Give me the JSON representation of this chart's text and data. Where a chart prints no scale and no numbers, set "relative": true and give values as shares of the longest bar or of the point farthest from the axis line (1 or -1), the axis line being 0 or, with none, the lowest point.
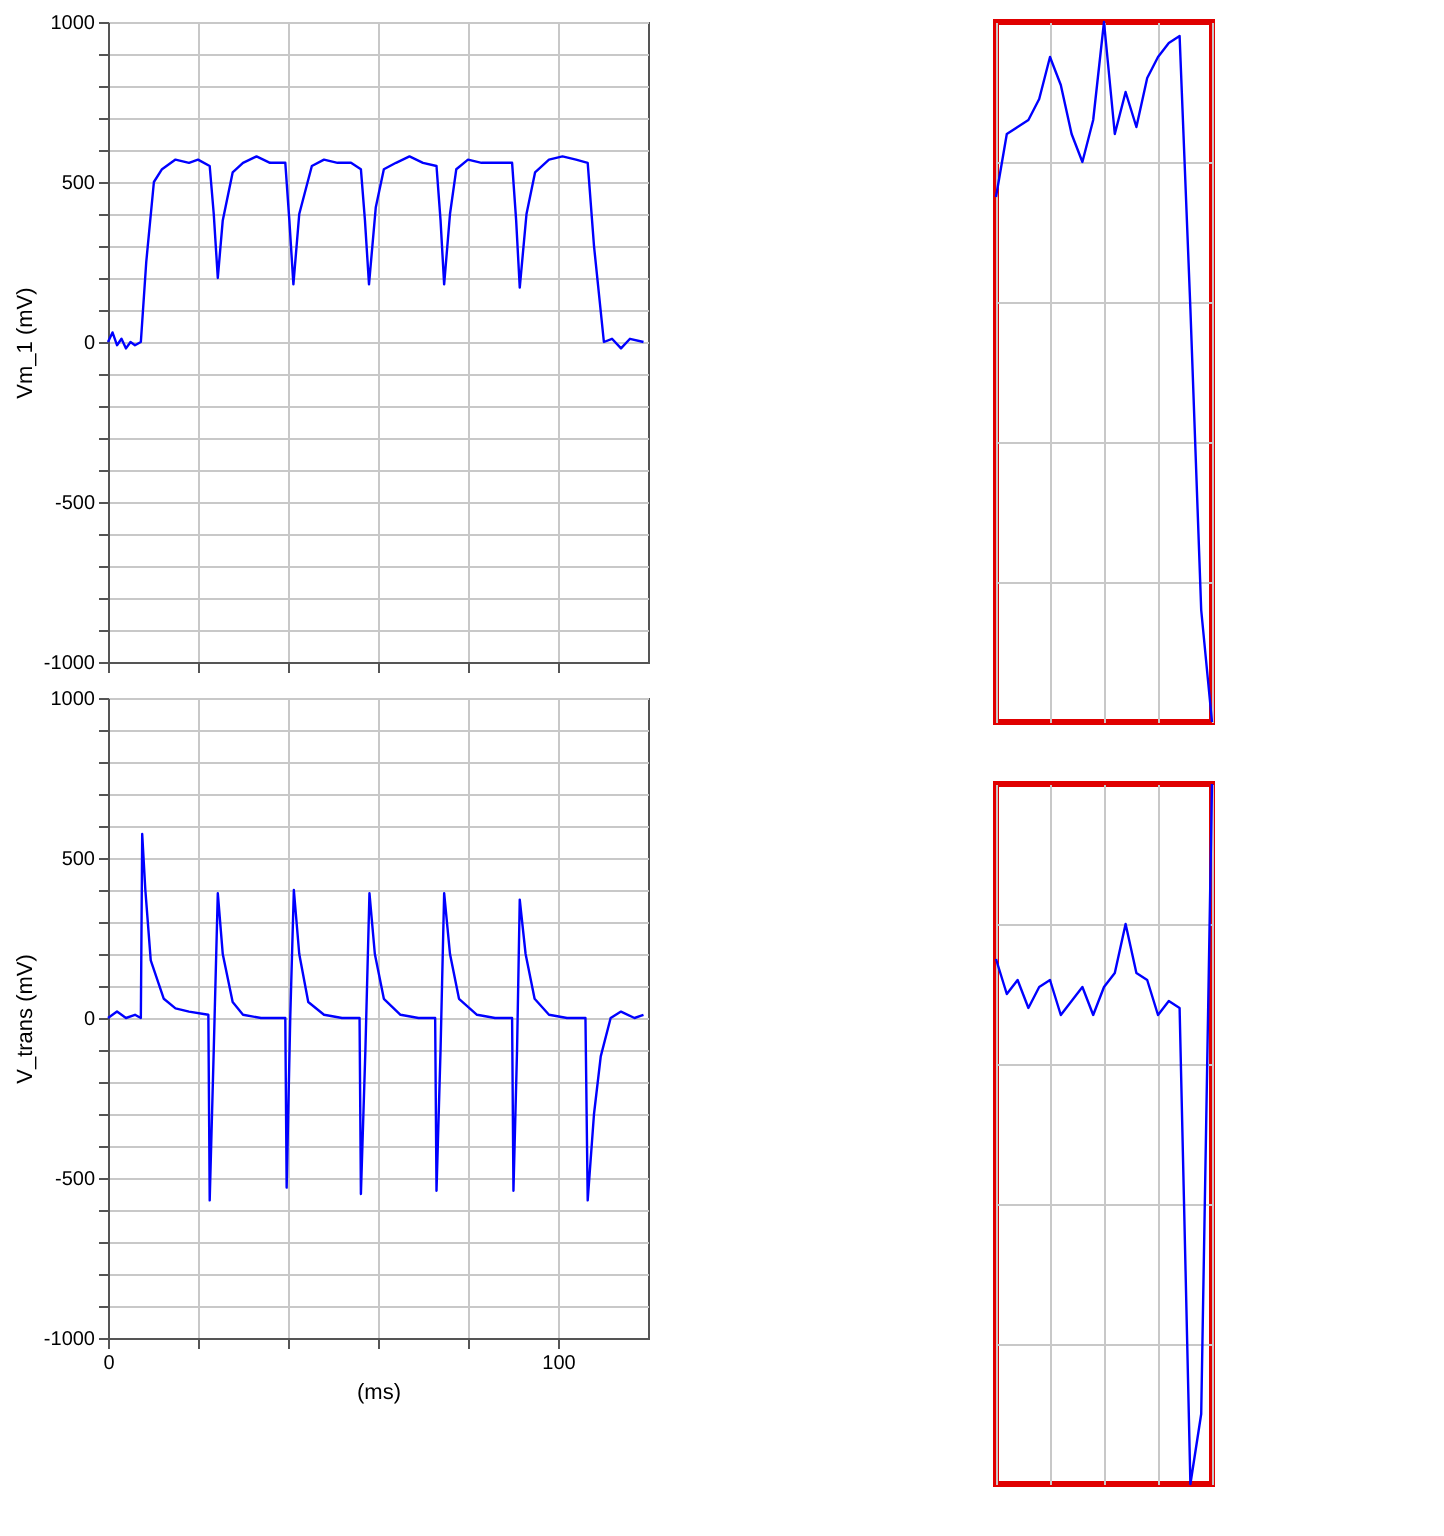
{
  "chart_data": [
    {
      "type": "line",
      "ylabel": "Vm_1 (mV)",
      "xlim": [
        0,
        120
      ],
      "ylim": [
        -1000,
        1000
      ],
      "xticks": [
        0,
        {
          "value": 20,
          "label": null
        },
        {
          "value": 40,
          "label": null
        },
        {
          "value": 60,
          "label": null
        },
        {
          "value": 80,
          "label": null
        },
        100
      ],
      "yticks": [
        -1000,
        {
          "value": -900,
          "label": null
        },
        {
          "value": -800,
          "label": null
        },
        {
          "value": -700,
          "label": null
        },
        {
          "value": -600,
          "label": null
        },
        -500,
        {
          "value": -400,
          "label": null
        },
        {
          "value": -300,
          "label": null
        },
        {
          "value": -200,
          "label": null
        },
        {
          "value": -100,
          "label": null
        },
        0,
        {
          "value": 100,
          "label": null
        },
        {
          "value": 200,
          "label": null
        },
        {
          "value": 300,
          "label": null
        },
        {
          "value": 400,
          "label": null
        },
        500,
        {
          "value": 600,
          "label": null
        },
        {
          "value": 700,
          "label": null
        },
        {
          "value": 800,
          "label": null
        },
        {
          "value": 900,
          "label": null
        },
        1000
      ],
      "grid": true,
      "tick_labels": "y",
      "marker": "none",
      "line_style": "solid",
      "series": [
        {
          "color": "#0000ff",
          "x": [
            0,
            1,
            2,
            3,
            4,
            5,
            6,
            7.3,
            8.5,
            10.2,
            12,
            15,
            18,
            20,
            22.6,
            23.5,
            24.4,
            25.5,
            27.7,
            30,
            33,
            36,
            39.4,
            40.3,
            41.2,
            42.5,
            45.3,
            48,
            51,
            54,
            56.2,
            57.1,
            58,
            59.5,
            61.3,
            64,
            67,
            70,
            73,
            73.9,
            74.7,
            76,
            77.4,
            80,
            83,
            86,
            89.8,
            90.7,
            91.5,
            93,
            94.9,
            98,
            101,
            104,
            106.6,
            108,
            110.2,
            112,
            114,
            116,
            119
          ],
          "values": [
            0,
            30,
            -10,
            10,
            -20,
            0,
            -10,
            0,
            250,
            500,
            540,
            570,
            560,
            570,
            550,
            400,
            200,
            380,
            530,
            560,
            580,
            560,
            560,
            380,
            180,
            400,
            550,
            570,
            560,
            560,
            540,
            380,
            180,
            420,
            540,
            560,
            580,
            560,
            550,
            380,
            180,
            400,
            540,
            570,
            560,
            560,
            560,
            380,
            170,
            400,
            530,
            570,
            580,
            570,
            560,
            300,
            0,
            10,
            -20,
            10,
            0
          ]
        }
      ]
    },
    {
      "type": "line",
      "ylabel": "V_trans (mV)",
      "xlabel": "(ms)",
      "xlim": [
        0,
        120
      ],
      "ylim": [
        -1000,
        1000
      ],
      "xticks": [
        0,
        {
          "value": 20,
          "label": null
        },
        {
          "value": 40,
          "label": null
        },
        {
          "value": 60,
          "label": null
        },
        {
          "value": 80,
          "label": null
        },
        100
      ],
      "yticks": [
        -1000,
        {
          "value": -900,
          "label": null
        },
        {
          "value": -800,
          "label": null
        },
        {
          "value": -700,
          "label": null
        },
        {
          "value": -600,
          "label": null
        },
        -500,
        {
          "value": -400,
          "label": null
        },
        {
          "value": -300,
          "label": null
        },
        {
          "value": -200,
          "label": null
        },
        {
          "value": -100,
          "label": null
        },
        0,
        {
          "value": 100,
          "label": null
        },
        {
          "value": 200,
          "label": null
        },
        {
          "value": 300,
          "label": null
        },
        {
          "value": 400,
          "label": null
        },
        500,
        {
          "value": 600,
          "label": null
        },
        {
          "value": 700,
          "label": null
        },
        {
          "value": 800,
          "label": null
        },
        {
          "value": 900,
          "label": null
        },
        1000
      ],
      "grid": true,
      "marker": "none",
      "line_style": "solid",
      "series": [
        {
          "color": "#0000ff",
          "x": [
            0,
            2,
            4,
            6,
            7.3,
            7.6,
            8.3,
            9.5,
            12.4,
            15,
            18,
            22.3,
            22.6,
            23.5,
            24.4,
            25.5,
            27.7,
            30,
            34,
            39.4,
            39.7,
            40.5,
            41.3,
            42.5,
            44.5,
            48,
            52,
            55.9,
            56.2,
            57.2,
            58.1,
            59.3,
            61.3,
            65,
            69,
            72.7,
            73,
            73.9,
            74.7,
            76,
            78,
            82,
            86,
            89.8,
            90.1,
            90.9,
            91.5,
            92.8,
            94.8,
            98,
            102,
            106.1,
            106.6,
            108,
            109.5,
            111.7,
            114,
            117,
            119
          ],
          "values": [
            0,
            20,
            0,
            10,
            0,
            575,
            400,
            180,
            60,
            30,
            20,
            10,
            -570,
            -100,
            390,
            200,
            50,
            10,
            0,
            0,
            -530,
            0,
            400,
            200,
            50,
            10,
            0,
            0,
            -550,
            -100,
            390,
            200,
            60,
            10,
            0,
            0,
            -540,
            -100,
            390,
            200,
            60,
            10,
            0,
            0,
            -540,
            -100,
            370,
            200,
            60,
            10,
            0,
            0,
            -570,
            -300,
            -120,
            0,
            20,
            0,
            10
          ]
        }
      ]
    },
    {
      "type": "line",
      "relative": true,
      "categories": [
        null,
        null,
        null,
        null,
        null,
        null,
        null,
        null,
        null,
        null,
        null,
        null,
        null,
        null,
        null,
        null,
        null,
        null,
        null,
        null,
        null
      ],
      "grid": true,
      "tick_labels": false,
      "marker": "none",
      "line_style": "solid",
      "series": [
        {
          "color": "#0000ff",
          "values": [
            0.75,
            0.84,
            0.85,
            0.86,
            0.89,
            0.95,
            0.91,
            0.84,
            0.8,
            0.86,
            1.0,
            0.84,
            0.9,
            0.85,
            0.92,
            0.95,
            0.97,
            0.98,
            0.59,
            0.16,
            0
          ]
        }
      ]
    },
    {
      "type": "line",
      "relative": true,
      "categories": [
        null,
        null,
        null,
        null,
        null,
        null,
        null,
        null,
        null,
        null,
        null,
        null,
        null,
        null,
        null,
        null,
        null,
        null,
        null,
        null,
        null
      ],
      "grid": true,
      "tick_labels": false,
      "marker": "none",
      "line_style": "solid",
      "series": [
        {
          "color": "#0000ff",
          "values": [
            0.75,
            0.7,
            0.72,
            0.68,
            0.71,
            0.72,
            0.67,
            0.69,
            0.71,
            0.67,
            0.71,
            0.73,
            0.8,
            0.73,
            0.72,
            0.67,
            0.69,
            0.68,
            0,
            0.1,
            1
          ]
        }
      ]
    }
  ]
}
